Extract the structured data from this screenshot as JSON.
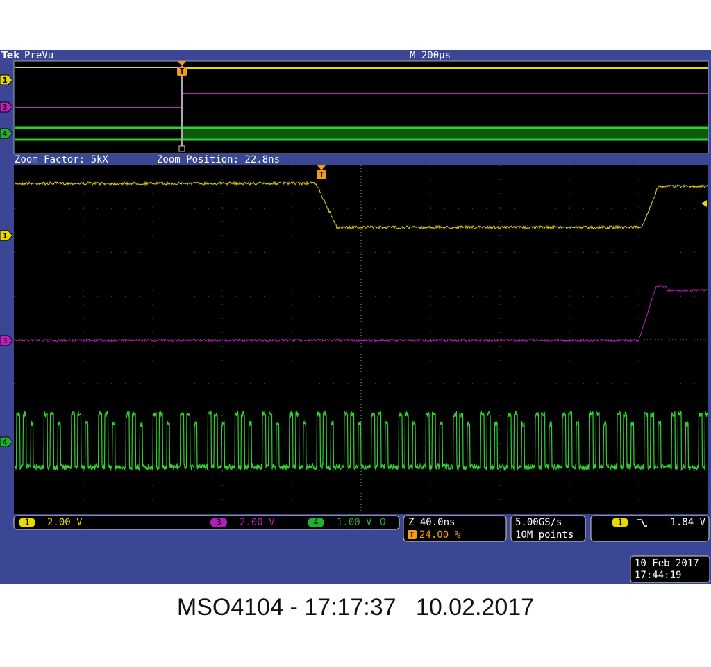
{
  "top_bar": {
    "brand": "Tek",
    "mode": "PreVu",
    "timebase": "M 200µs"
  },
  "overview": {
    "channel_markers": [
      "1",
      "3",
      "4"
    ],
    "trigger_marker": "T"
  },
  "zoom_bar": {
    "factor": "Zoom Factor: 5kX",
    "position": "Zoom Position: 22.8ns"
  },
  "main": {
    "channel_markers": [
      "1",
      "3",
      "4"
    ],
    "trigger_marker": "T"
  },
  "readouts": {
    "channels": [
      {
        "channel": "1",
        "scale": "2.00 V"
      },
      {
        "channel": "3",
        "scale": "2.00 V"
      },
      {
        "channel": "4",
        "scale": "1.00 V",
        "coupling": "Ω"
      }
    ],
    "zoom": {
      "scale": "Z 40.0ns",
      "trigger_icon": "T",
      "trigger_position": "24.00 %"
    },
    "acquisition": {
      "sample_rate": "5.00GS/s",
      "record_length": "10M points"
    },
    "trigger": {
      "channel": "1",
      "level": "1.84 V"
    }
  },
  "clock": {
    "date": "10 Feb 2017",
    "time": "17:44:19"
  },
  "caption": "MSO4104 - 17:17:37   10.02.2017"
}
